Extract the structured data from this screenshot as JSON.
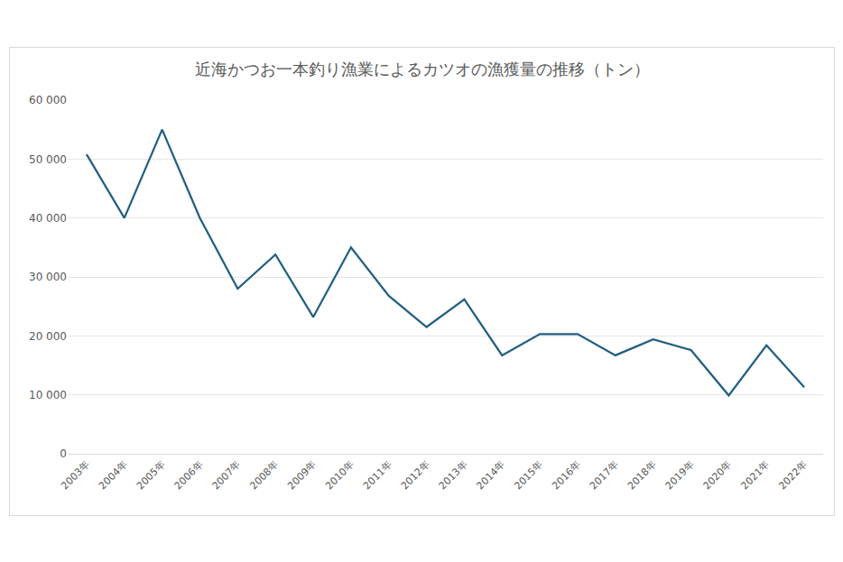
{
  "chart_data": {
    "type": "line",
    "title": "近海かつお一本釣り漁業によるカツオの漁獲量の推移（トン）",
    "categories": [
      "2003年",
      "2004年",
      "2005年",
      "2006年",
      "2007年",
      "2008年",
      "2009年",
      "2010年",
      "2011年",
      "2012年",
      "2013年",
      "2014年",
      "2015年",
      "2016年",
      "2017年",
      "2018年",
      "2019年",
      "2020年",
      "2021年",
      "2022年"
    ],
    "values": [
      50800,
      40000,
      55000,
      40000,
      28000,
      33800,
      23200,
      35000,
      26800,
      21500,
      26200,
      16700,
      20300,
      20300,
      16700,
      19400,
      17600,
      9900,
      18400,
      11300
    ],
    "color": "#215f80",
    "ylim": [
      0,
      60000
    ],
    "yticks": [
      0,
      {
        "value": 10000,
        "label": "10 000"
      },
      {
        "value": 20000,
        "label": "20 000"
      },
      {
        "value": 30000,
        "label": "30 000"
      },
      {
        "value": 40000,
        "label": "40 000"
      },
      {
        "value": 50000,
        "label": "50 000"
      },
      {
        "value": 60000,
        "label": "60 000"
      }
    ],
    "grid": true
  }
}
